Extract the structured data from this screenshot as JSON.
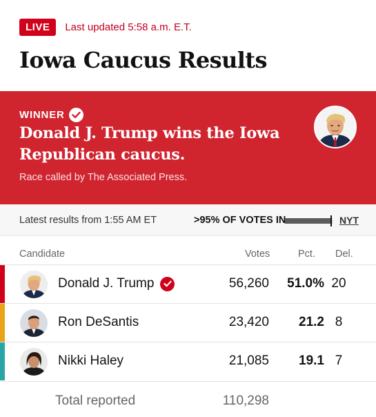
{
  "header": {
    "live_label": "LIVE",
    "updated": "Last updated 5:58 a.m. E.T.",
    "title": "Iowa Caucus Results"
  },
  "winner": {
    "label": "WINNER",
    "headline": "Donald J. Trump wins the Iowa Republican caucus.",
    "called_by": "Race called by The Associated Press.",
    "photo_icon": "trump-portrait"
  },
  "status": {
    "latest": "Latest results from 1:55 AM ET",
    "votes_in": ">95% OF VOTES IN",
    "progress": 0.95,
    "source_link": "NYT"
  },
  "table": {
    "headers": {
      "candidate": "Candidate",
      "votes": "Votes",
      "pct": "Pct.",
      "del": "Del."
    },
    "rows": [
      {
        "name": "Donald J. Trump",
        "votes": "56,260",
        "pct": "51.0%",
        "del": "20",
        "color": "#d0021b",
        "winner": true
      },
      {
        "name": "Ron DeSantis",
        "votes": "23,420",
        "pct": "21.2",
        "del": "8",
        "color": "#e8a317",
        "winner": false
      },
      {
        "name": "Nikki Haley",
        "votes": "21,085",
        "pct": "19.1",
        "del": "7",
        "color": "#2aa5a5",
        "winner": false
      }
    ],
    "total_label": "Total reported",
    "total_votes": "110,298"
  },
  "colors": {
    "accent_red": "#d0021b",
    "winner_bg": "#d0242f"
  }
}
